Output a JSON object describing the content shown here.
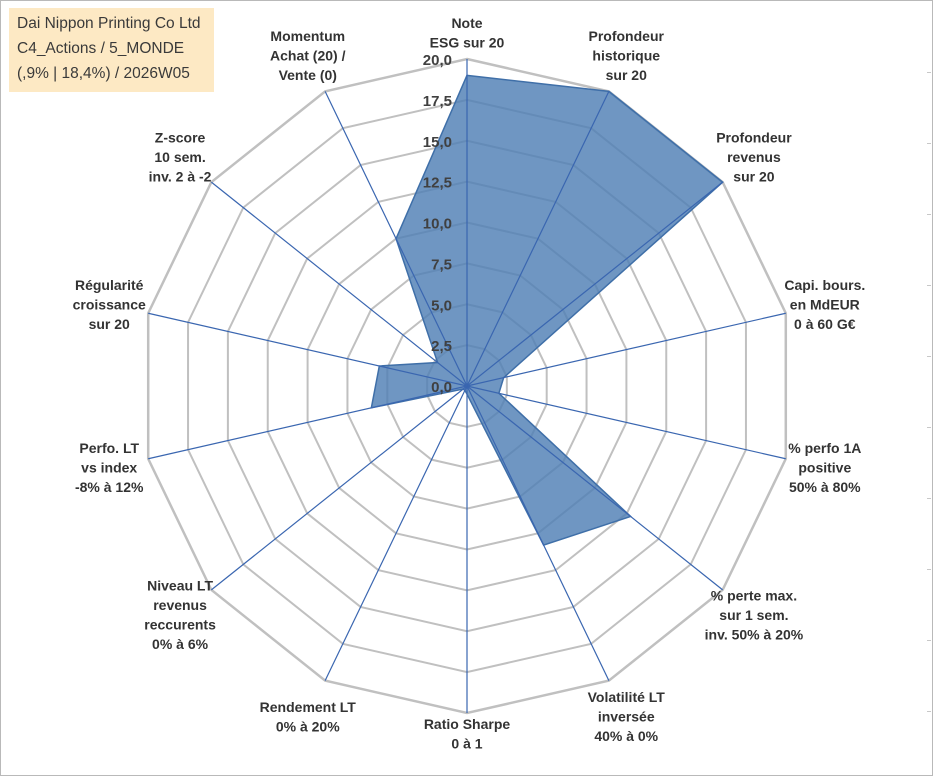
{
  "title_box": {
    "line1": "Dai Nippon Printing Co Ltd",
    "line2": "C4_Actions / 5_MONDE",
    "line3": "(,9% | 18,4%) / 2026W05"
  },
  "colors": {
    "fill": "#4f7fb5",
    "stroke": "#3f6fa8",
    "grid": "#c0c0c0",
    "spoke": "#3a66b0",
    "title_bg": "#fde9c4"
  },
  "chart_data": {
    "type": "radar",
    "title": "Dai Nippon Printing Co Ltd",
    "r_min": 0,
    "r_max": 20,
    "tick_step": 2.5,
    "tick_labels": [
      "0,0",
      "2,5",
      "5,0",
      "7,5",
      "10,0",
      "12,5",
      "15,0",
      "17,5",
      "20,0"
    ],
    "axes": [
      {
        "label": [
          "Note",
          "ESG sur 20"
        ],
        "value": 19.0
      },
      {
        "label": [
          "Profondeur",
          "historique",
          "sur 20"
        ],
        "value": 20.0
      },
      {
        "label": [
          "Profondeur",
          "revenus",
          "sur 20"
        ],
        "value": 20.0
      },
      {
        "label": [
          "Capi. bours.",
          "en MdEUR",
          "0 à 60 G€"
        ],
        "value": 2.3
      },
      {
        "label": [
          "% perfo 1A",
          "positive",
          "50% à 80%"
        ],
        "value": 2.0
      },
      {
        "label": [
          "% perte max.",
          "sur 1 sem.",
          "inv. 50% à 20%"
        ],
        "value": 12.8
      },
      {
        "label": [
          "Volatilité LT",
          "inversée",
          "40% à 0%"
        ],
        "value": 10.8
      },
      {
        "label": [
          "Ratio Sharpe",
          "0 à 1"
        ],
        "value": 0.5
      },
      {
        "label": [
          "Rendement LT",
          "0% à 20%"
        ],
        "value": 0.3
      },
      {
        "label": [
          "Niveau LT",
          "revenus",
          "reccurents",
          "0% à 6%"
        ],
        "value": 0.3
      },
      {
        "label": [
          "Perfo. LT",
          "vs index",
          "-8% à 12%"
        ],
        "value": 6.0
      },
      {
        "label": [
          "Régularité",
          "croissance",
          "sur 20"
        ],
        "value": 5.5
      },
      {
        "label": [
          "Z-score",
          "10 sem.",
          "inv. 2 à -2"
        ],
        "value": 2.3
      },
      {
        "label": [
          "Momentum",
          "Achat (20) /",
          "Vente (0)"
        ],
        "value": 10.0
      }
    ]
  }
}
